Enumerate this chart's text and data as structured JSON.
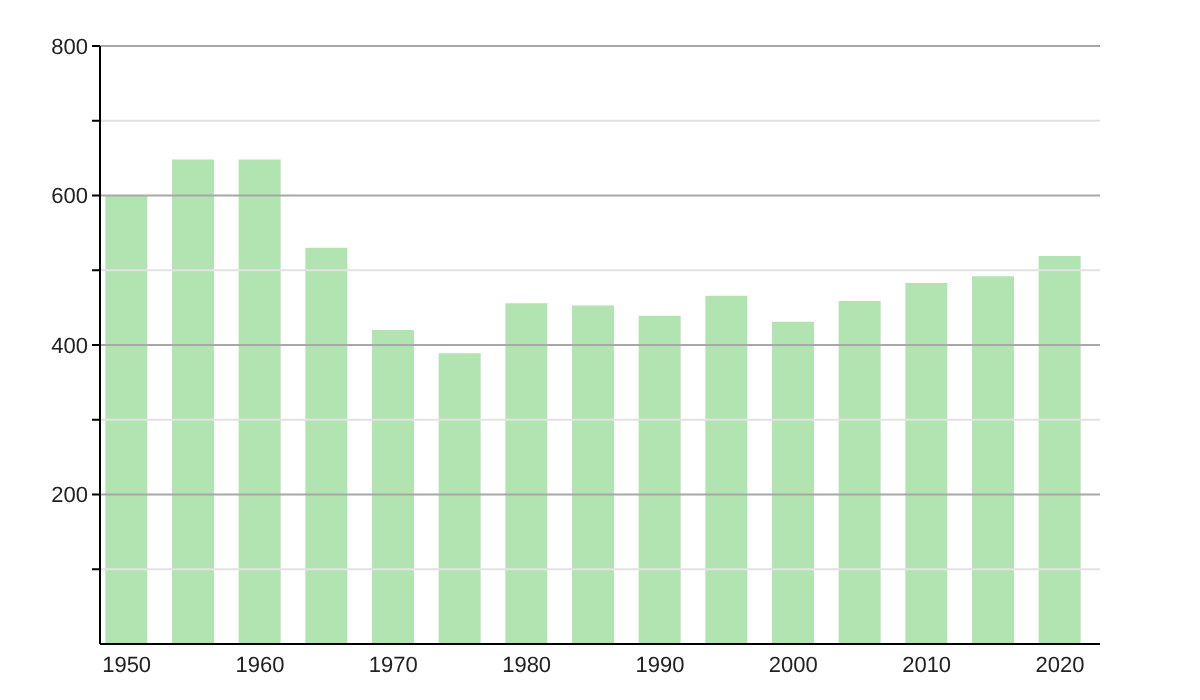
{
  "chart_data": {
    "type": "bar",
    "x": [
      1950,
      1955,
      1960,
      1965,
      1970,
      1975,
      1980,
      1985,
      1990,
      1995,
      2000,
      2005,
      2010,
      2015,
      2020
    ],
    "values": [
      600,
      648,
      648,
      530,
      420,
      389,
      456,
      453,
      439,
      466,
      431,
      459,
      483,
      492,
      519
    ],
    "color": "#b1e4b1",
    "xlim": [
      1948,
      2023
    ],
    "xticks": [
      1950,
      1960,
      1970,
      1980,
      1990,
      2000,
      2010,
      2020
    ],
    "ylim": [
      0,
      800
    ],
    "yticks": [
      {
        "value": 100,
        "label": null
      },
      200,
      {
        "value": 300,
        "label": null
      },
      400,
      {
        "value": 500,
        "label": null
      },
      600,
      {
        "value": 700,
        "label": null
      },
      800
    ],
    "grid": "y"
  }
}
